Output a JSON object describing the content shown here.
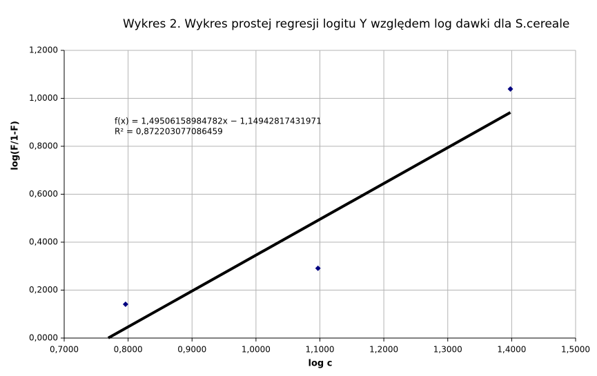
{
  "chart_data": {
    "type": "scatter",
    "title": "Wykres 2. Wykres prostej regresji logitu Y względem log dawki dla S.cereale",
    "x_label": "log c",
    "y_label": "log(F/1-F)",
    "series": [
      {
        "name": "S.cereale",
        "color": "#000080",
        "x": [
          0.796,
          1.097,
          1.398
        ],
        "values": [
          0.141,
          0.291,
          1.039
        ]
      }
    ],
    "trendline": {
      "color": "#000000",
      "x": [
        0.769,
        1.398
      ],
      "values": [
        0.0003,
        0.941
      ]
    },
    "annotations": [
      "f(x) = 1,49506158984782x − 1,14942817431971",
      "R² = 0,872203077086459"
    ],
    "xlim": [
      0.7,
      1.5
    ],
    "xticks": [
      {
        "value": 0.7,
        "label": "0,7000"
      },
      {
        "value": 0.8,
        "label": "0,8000"
      },
      {
        "value": 0.9,
        "label": "0,9000"
      },
      {
        "value": 1.0,
        "label": "1,0000"
      },
      {
        "value": 1.1,
        "label": "1,1000"
      },
      {
        "value": 1.2,
        "label": "1,2000"
      },
      {
        "value": 1.3,
        "label": "1,3000"
      },
      {
        "value": 1.4,
        "label": "1,4000"
      },
      {
        "value": 1.5,
        "label": "1,5000"
      }
    ],
    "ylim": [
      0,
      1.2
    ],
    "yticks": [
      {
        "value": 0,
        "label": "0,0000"
      },
      {
        "value": 0.2,
        "label": "0,2000"
      },
      {
        "value": 0.4,
        "label": "0,4000"
      },
      {
        "value": 0.6,
        "label": "0,6000"
      },
      {
        "value": 0.8,
        "label": "0,8000"
      },
      {
        "value": 1.0,
        "label": "1,0000"
      },
      {
        "value": 1.2,
        "label": "1,2000"
      }
    ],
    "grid": true
  }
}
